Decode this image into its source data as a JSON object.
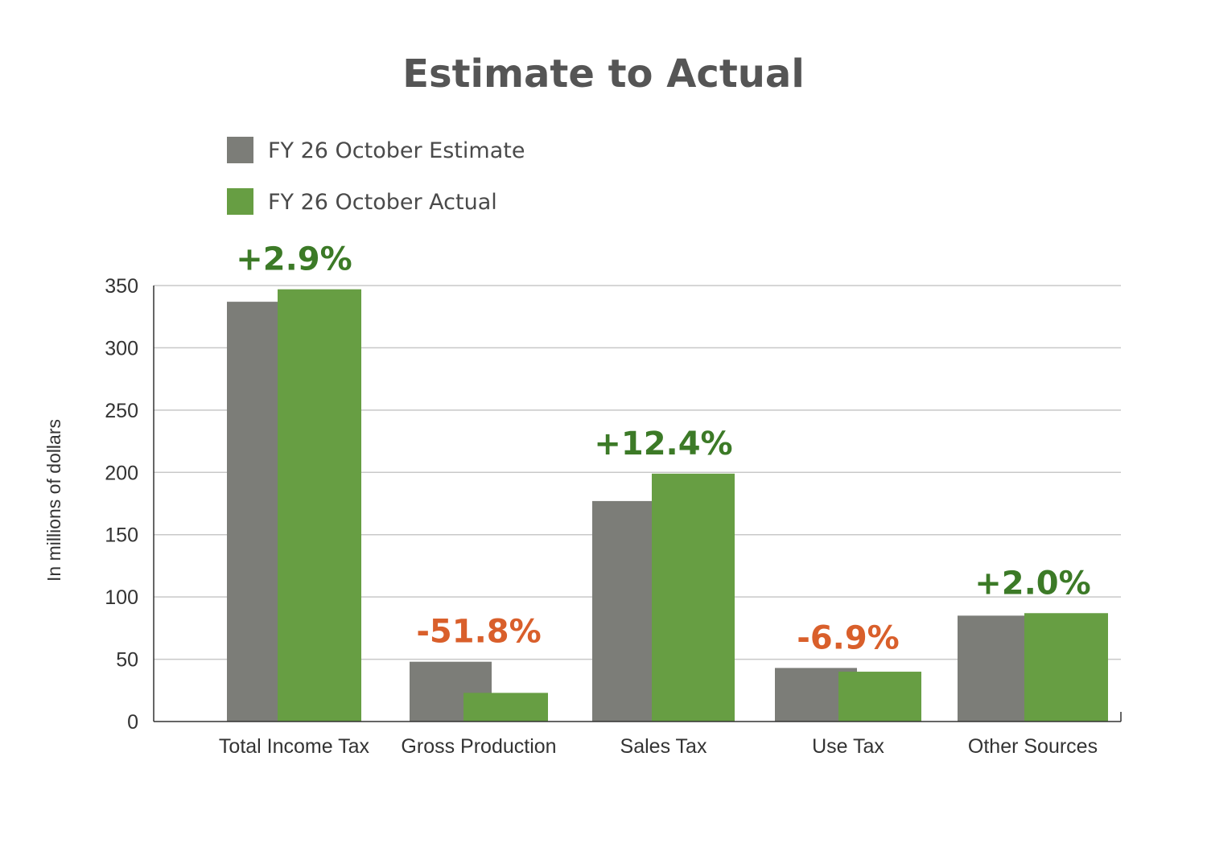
{
  "chart_data": {
    "type": "bar",
    "title": "Estimate to Actual",
    "ylabel": "In millions of dollars",
    "xlabel": "",
    "ylim": [
      0,
      350
    ],
    "yticks": [
      0,
      50,
      100,
      150,
      200,
      250,
      300,
      350
    ],
    "grid": true,
    "legend_position": "top-left",
    "categories": [
      "Total Income Tax",
      "Gross Production",
      "Sales Tax",
      "Use Tax",
      "Other Sources"
    ],
    "series": [
      {
        "name": "FY 26 October Estimate",
        "color": "#7c7d78",
        "values": [
          337,
          48,
          177,
          43,
          85
        ]
      },
      {
        "name": "FY 26 October Actual",
        "color": "#679e43",
        "values": [
          347,
          23,
          199,
          40,
          87
        ]
      }
    ],
    "annotations": [
      {
        "text": "+2.9%",
        "color": "#3c7a27"
      },
      {
        "text": "-51.8%",
        "color": "#d95f2b"
      },
      {
        "text": "+12.4%",
        "color": "#3c7a27"
      },
      {
        "text": "-6.9%",
        "color": "#d95f2b"
      },
      {
        "text": "+2.0%",
        "color": "#3c7a27"
      }
    ]
  }
}
